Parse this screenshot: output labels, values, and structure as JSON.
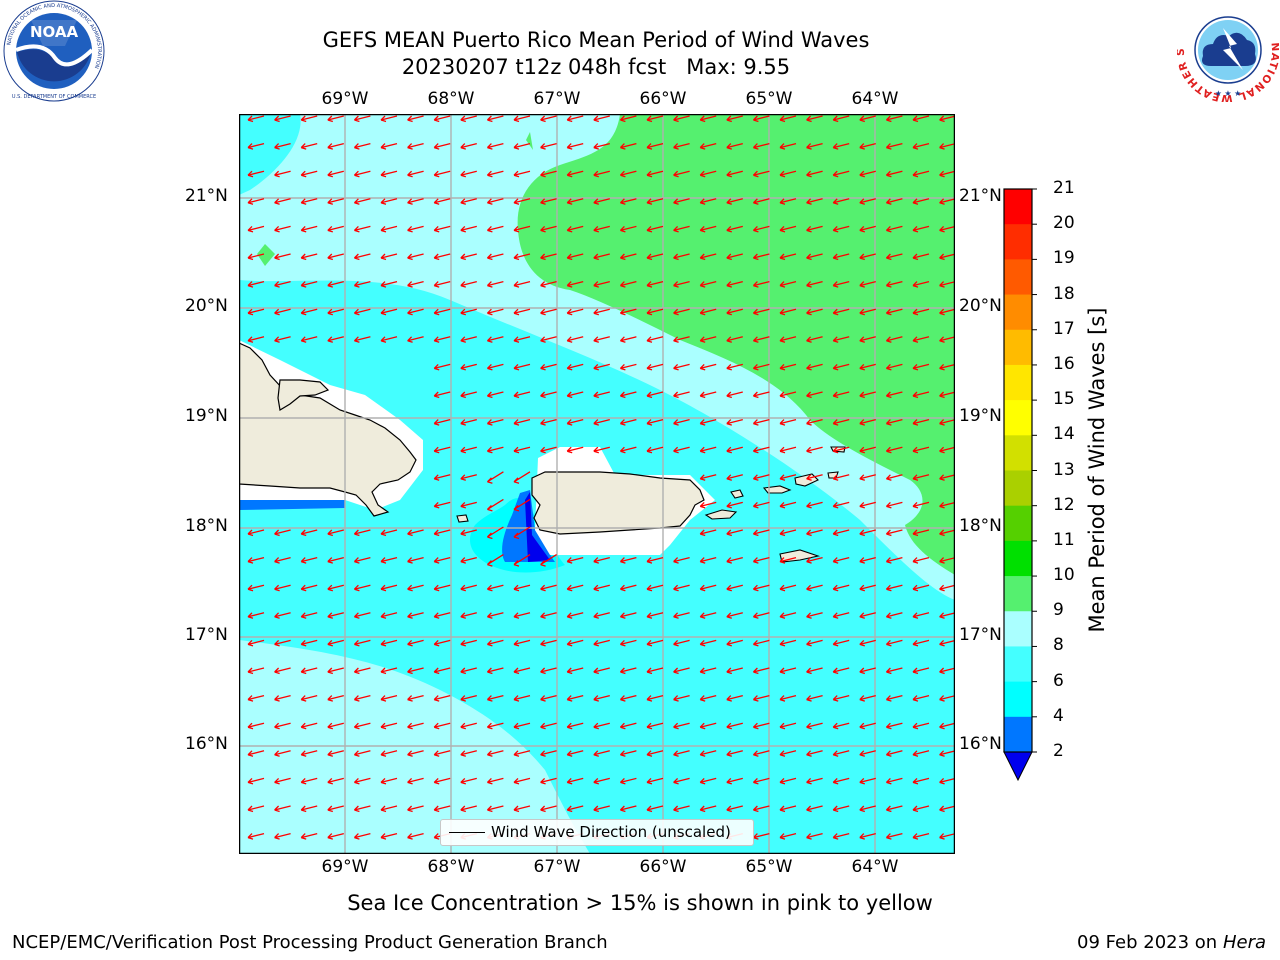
{
  "title_line1": "GEFS MEAN Puerto Rico Mean Period of Wind Waves",
  "title_line2": "20230207 t12z 048h fcst   Max: 9.55",
  "subtitle": "Sea Ice Concentration > 15% is shown in pink to yellow",
  "footer_left": "NCEP/EMC/Verification Post Processing Product Generation Branch",
  "footer_right_date": "09 Feb 2023 on",
  "footer_right_host": "Hera",
  "legend_label": "Wind Wave Direction (unscaled)",
  "colorbar": {
    "title": "Mean Period of Wind Waves [s]",
    "ticks": [
      "2",
      "4",
      "6",
      "8",
      "9",
      "10",
      "11",
      "12",
      "13",
      "14",
      "15",
      "16",
      "17",
      "18",
      "19",
      "20",
      "21"
    ],
    "colors": [
      "#0000ee",
      "#0077ff",
      "#00ffff",
      "#44ffff",
      "#aaffff",
      "#55f06f",
      "#00e000",
      "#55d000",
      "#aad000",
      "#d2e000",
      "#ffff00",
      "#ffe600",
      "#ffbb00",
      "#ff8c00",
      "#ff5a00",
      "#ff2d00",
      "#ff0000"
    ]
  },
  "map": {
    "lon_labels": [
      "69°W",
      "68°W",
      "67°W",
      "66°W",
      "65°W",
      "64°W"
    ],
    "lat_labels": [
      "21°N",
      "20°N",
      "19°N",
      "18°N",
      "17°N",
      "16°N"
    ],
    "arrow_color": "#ff0000",
    "land_color": "#efecdc"
  },
  "logos": {
    "noaa_text": "NOAA",
    "noaa_ring_text": "NATIONAL OCEANIC AND ATMOSPHERIC ADMINISTRATION",
    "noaa_bottom_text": "U.S. DEPARTMENT OF COMMERCE",
    "nws_ring_text": "NATIONAL WEATHER SERVICE"
  }
}
